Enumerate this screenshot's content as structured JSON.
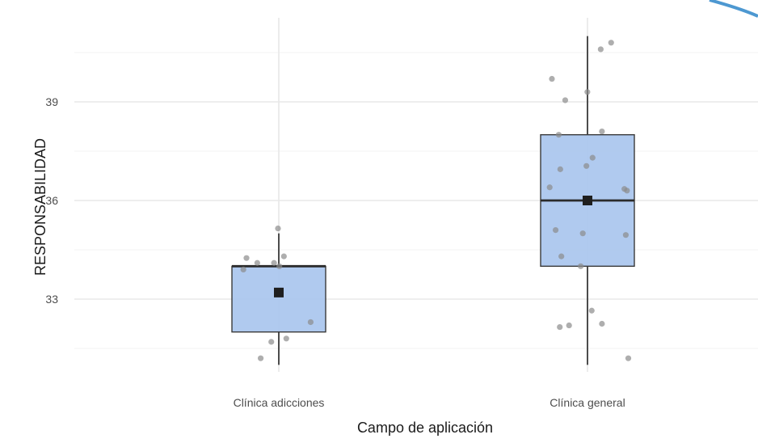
{
  "chart_data": {
    "type": "boxplot",
    "title": "",
    "xlabel": "Campo de aplicación",
    "ylabel": "RESPONSABILIDAD",
    "ylim": [
      30.9,
      41.3
    ],
    "yticks": [
      33,
      36,
      39
    ],
    "grid": true,
    "categories": [
      "Clínica adicciones",
      "Clínica general"
    ],
    "boxes": [
      {
        "category": "Clínica adicciones",
        "whisker_low": 31.0,
        "q1": 32.0,
        "median": 34.0,
        "q3": 34.0,
        "whisker_high": 35.0,
        "mean": 33.2
      },
      {
        "category": "Clínica general",
        "whisker_low": 31.0,
        "q1": 34.0,
        "median": 36.0,
        "q3": 38.0,
        "whisker_high": 41.0,
        "mean": 36.0
      }
    ],
    "points": [
      {
        "category": "Clínica adicciones",
        "values": [
          35.15,
          34.3,
          34.25,
          34.1,
          34.1,
          34.0,
          33.9,
          32.3,
          31.8,
          31.7,
          31.2
        ]
      },
      {
        "category": "Clínica general",
        "values": [
          40.8,
          40.6,
          39.7,
          39.3,
          39.05,
          38.1,
          38.0,
          37.3,
          37.05,
          36.95,
          36.4,
          36.35,
          36.3,
          35.1,
          35.0,
          34.95,
          34.3,
          34.0,
          32.65,
          32.25,
          32.2,
          32.15,
          31.2
        ]
      }
    ],
    "colors": {
      "box_fill": "#a9c6ee",
      "box_stroke": "#3a3a3a",
      "point": "#8c8c8c",
      "mean_marker": "#1f1f1f",
      "grid": "#e8e8e8",
      "accent_arc": "#2e86c9"
    }
  }
}
